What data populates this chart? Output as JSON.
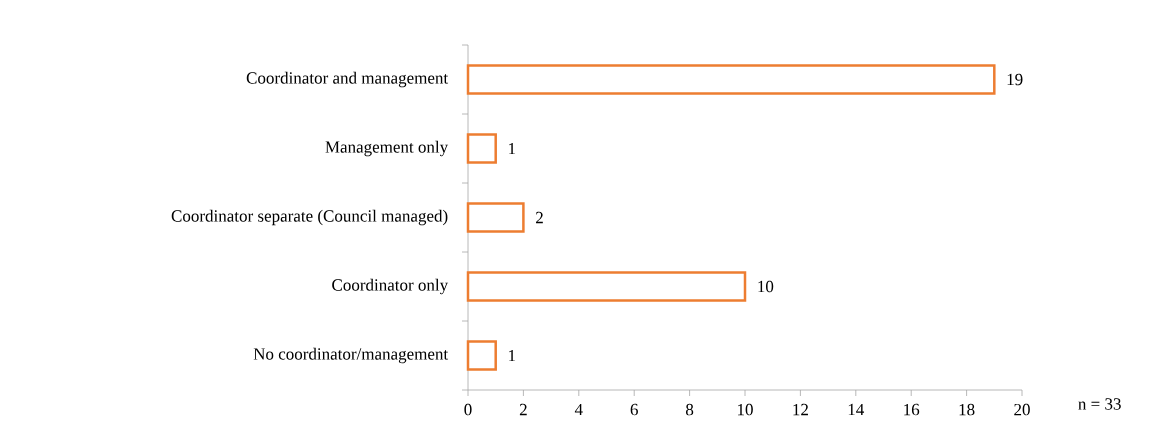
{
  "chart_data": {
    "type": "bar",
    "orientation": "horizontal",
    "categories": [
      "Coordinator and management",
      "Management only",
      "Coordinator separate (Council managed)",
      "Coordinator only",
      "No coordinator/management"
    ],
    "values": [
      19,
      1,
      2,
      10,
      1
    ],
    "color": "#ed7d31",
    "xlim": [
      0,
      20
    ],
    "xticks": [
      0,
      2,
      4,
      6,
      8,
      10,
      12,
      14,
      16,
      18,
      20
    ],
    "data_labels": true,
    "annotations": [
      "n = 33"
    ]
  }
}
